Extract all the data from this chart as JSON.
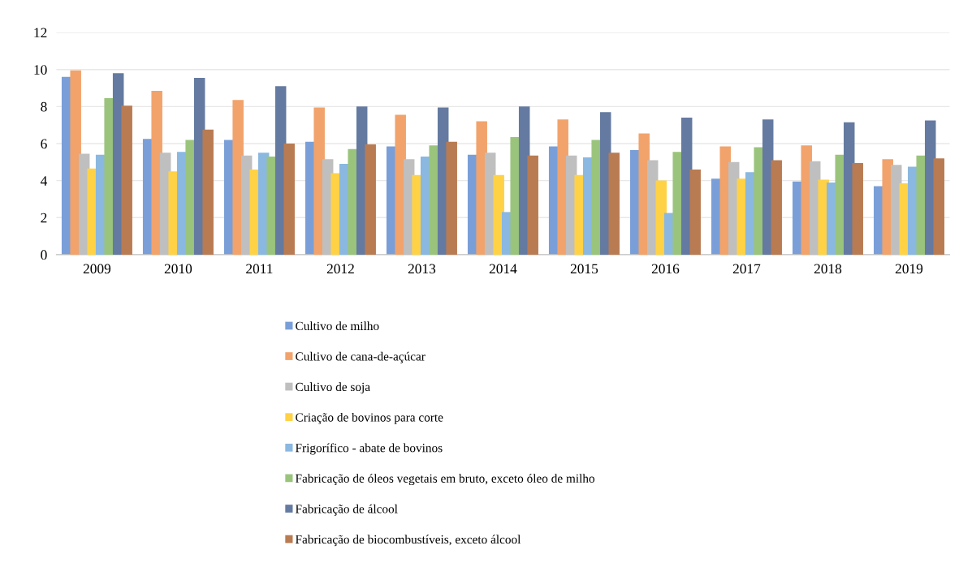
{
  "chart_data": {
    "type": "bar",
    "categories": [
      "2009",
      "2010",
      "2011",
      "2012",
      "2013",
      "2014",
      "2015",
      "2016",
      "2017",
      "2018",
      "2019"
    ],
    "series": [
      {
        "name": "Cultivo de milho",
        "color": "#7a9fd8",
        "values": [
          9.6,
          6.25,
          6.2,
          6.1,
          5.85,
          5.4,
          5.85,
          5.65,
          4.1,
          3.95,
          3.7
        ]
      },
      {
        "name": "Cultivo de cana-de-açúcar",
        "color": "#f1a36b",
        "values": [
          9.95,
          8.85,
          8.35,
          7.95,
          7.55,
          7.2,
          7.3,
          6.55,
          5.85,
          5.9,
          5.15
        ]
      },
      {
        "name": "Cultivo de soja",
        "color": "#bfbfbf",
        "values": [
          5.45,
          5.5,
          5.35,
          5.15,
          5.15,
          5.5,
          5.35,
          5.1,
          5.0,
          5.05,
          4.85
        ]
      },
      {
        "name": "Criação de bovinos para corte",
        "color": "#ffd245",
        "values": [
          4.65,
          4.5,
          4.6,
          4.4,
          4.3,
          4.3,
          4.3,
          4.0,
          4.1,
          4.05,
          3.85
        ]
      },
      {
        "name": "Frigorífico - abate de bovinos",
        "color": "#8ab8e0",
        "values": [
          5.4,
          5.55,
          5.5,
          4.9,
          5.3,
          2.3,
          5.25,
          2.25,
          4.45,
          3.9,
          4.75
        ]
      },
      {
        "name": "Fabricação de óleos vegetais em bruto, exceto óleo de milho",
        "color": "#9ac47c",
        "values": [
          8.45,
          6.2,
          5.3,
          5.7,
          5.9,
          6.35,
          6.2,
          5.55,
          5.8,
          5.4,
          5.35
        ]
      },
      {
        "name": "Fabricação de álcool",
        "color": "#647aa0",
        "values": [
          9.8,
          9.55,
          9.1,
          8.0,
          7.95,
          8.0,
          7.7,
          7.4,
          7.3,
          7.15,
          7.25
        ]
      },
      {
        "name": "Fabricação de biocombustíveis, exceto álcool",
        "color": "#b97b52",
        "values": [
          8.05,
          6.75,
          6.0,
          5.95,
          6.1,
          5.35,
          5.5,
          4.6,
          5.1,
          4.95,
          5.2
        ]
      }
    ],
    "ylim": [
      0,
      12
    ],
    "yticks": [
      0,
      2,
      4,
      6,
      8,
      10,
      12
    ],
    "grid": "y",
    "legend": "bottom"
  }
}
